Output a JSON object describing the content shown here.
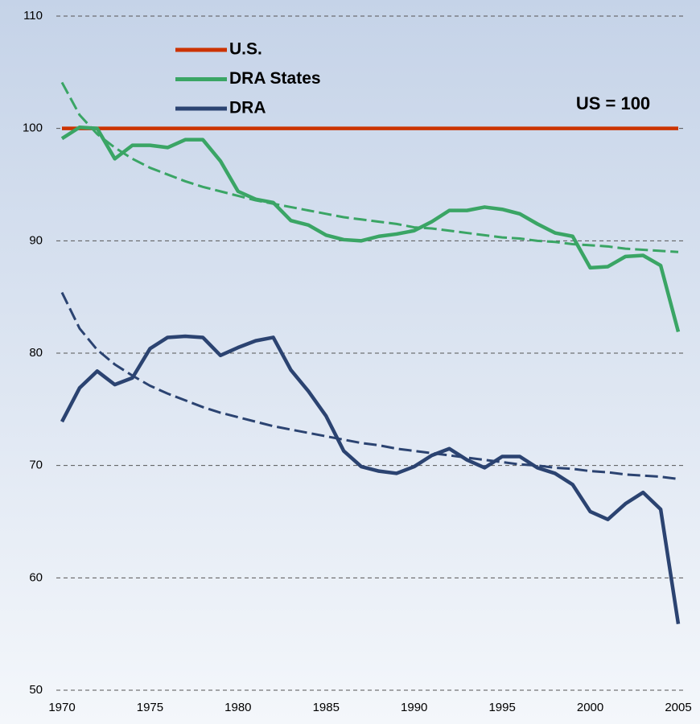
{
  "chart_data": {
    "type": "line",
    "annotation": "US = 100",
    "x": [
      1970,
      1971,
      1972,
      1973,
      1974,
      1975,
      1976,
      1977,
      1978,
      1979,
      1980,
      1981,
      1982,
      1983,
      1984,
      1985,
      1986,
      1987,
      1988,
      1989,
      1990,
      1991,
      1992,
      1993,
      1994,
      1995,
      1996,
      1997,
      1998,
      1999,
      2000,
      2001,
      2002,
      2003,
      2004,
      2005
    ],
    "xlim": [
      1970,
      2005
    ],
    "xticks": [
      1970,
      1975,
      1980,
      1985,
      1990,
      1995,
      2000,
      2005
    ],
    "ylim": [
      50,
      110
    ],
    "yticks": [
      50,
      60,
      70,
      80,
      90,
      100,
      110
    ],
    "grid": true,
    "legend": "upper left",
    "series": [
      {
        "name": "U.S.",
        "color": "#cc3300",
        "values": [
          100,
          100,
          100,
          100,
          100,
          100,
          100,
          100,
          100,
          100,
          100,
          100,
          100,
          100,
          100,
          100,
          100,
          100,
          100,
          100,
          100,
          100,
          100,
          100,
          100,
          100,
          100,
          100,
          100,
          100,
          100,
          100,
          100,
          100,
          100,
          100
        ]
      },
      {
        "name": "DRA States",
        "color": "#3aa565",
        "values": [
          99.1,
          100.1,
          100,
          97.3,
          98.5,
          98.5,
          98.3,
          99.0,
          99.0,
          97.1,
          94.4,
          93.7,
          93.4,
          91.8,
          91.4,
          90.5,
          90.1,
          90.0,
          90.4,
          90.6,
          90.9,
          91.7,
          92.7,
          92.7,
          93.0,
          92.8,
          92.4,
          91.5,
          90.7,
          90.4,
          87.6,
          87.7,
          88.6,
          88.7,
          87.8,
          81.9
        ]
      },
      {
        "name": "DRA",
        "color": "#2b4371",
        "values": [
          73.9,
          76.9,
          78.4,
          77.2,
          77.8,
          80.4,
          81.4,
          81.5,
          81.4,
          79.8,
          80.5,
          81.1,
          81.4,
          78.5,
          76.6,
          74.4,
          71.3,
          69.9,
          69.5,
          69.3,
          69.9,
          70.9,
          71.5,
          70.5,
          69.8,
          70.8,
          70.8,
          69.8,
          69.3,
          68.3,
          65.9,
          65.2,
          66.6,
          67.6,
          66.1,
          55.9
        ]
      },
      {
        "color": "#3aa565",
        "dashed": true,
        "values": [
          104.1,
          101.2,
          99.5,
          98.3,
          97.3,
          96.5,
          95.9,
          95.3,
          94.8,
          94.4,
          94.0,
          93.6,
          93.3,
          93.0,
          92.7,
          92.4,
          92.1,
          91.9,
          91.7,
          91.5,
          91.2,
          91.1,
          90.9,
          90.7,
          90.5,
          90.3,
          90.2,
          90.0,
          89.9,
          89.7,
          89.6,
          89.5,
          89.3,
          89.2,
          89.1,
          89.0
        ]
      },
      {
        "color": "#2b4371",
        "dashed": true,
        "values": [
          85.4,
          82.2,
          80.3,
          79.0,
          78.0,
          77.1,
          76.4,
          75.8,
          75.2,
          74.7,
          74.3,
          73.9,
          73.5,
          73.2,
          72.9,
          72.6,
          72.3,
          72.0,
          71.8,
          71.5,
          71.3,
          71.1,
          70.9,
          70.7,
          70.5,
          70.3,
          70.1,
          70.0,
          69.8,
          69.7,
          69.5,
          69.4,
          69.2,
          69.1,
          69.0,
          68.8
        ]
      }
    ]
  }
}
